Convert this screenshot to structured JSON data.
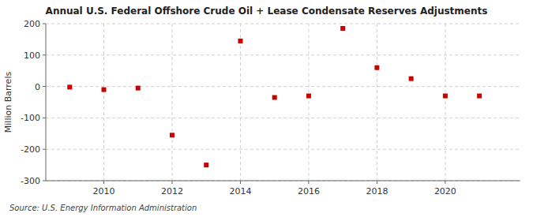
{
  "chart_data": {
    "type": "scatter",
    "title": "Annual U.S. Federal Offshore Crude Oil + Lease Condensate Reserves Adjustments",
    "y_label": "Million Barrels",
    "annotations": [
      "Source: U.S. Energy Information Administration"
    ],
    "x": [
      2009,
      2010,
      2011,
      2012,
      2013,
      2014,
      2015,
      2016,
      2017,
      2018,
      2019,
      2020,
      2021
    ],
    "values": [
      -2,
      -10,
      -5,
      -155,
      -250,
      145,
      -35,
      -30,
      185,
      60,
      25,
      -30,
      -30
    ],
    "color": "#cc0000",
    "marker": "square",
    "grid": true,
    "xlim": [
      2008.3,
      2022.2
    ],
    "xticks": [
      2010,
      2012,
      2014,
      2016,
      2018,
      2020
    ],
    "ylim": [
      -300,
      200
    ],
    "yticks": [
      -300,
      -200,
      -100,
      0,
      100,
      200
    ]
  }
}
